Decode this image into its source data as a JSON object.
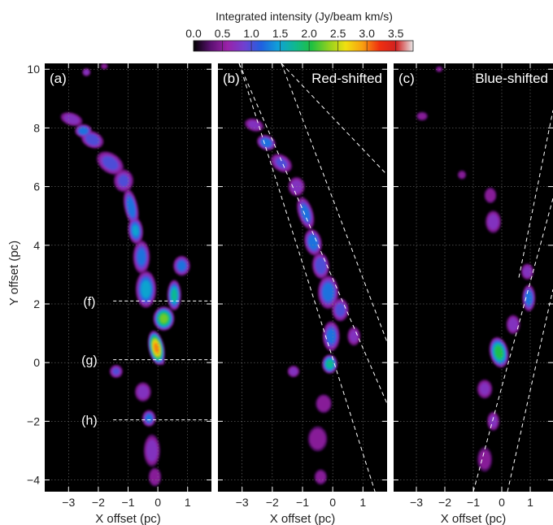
{
  "chart_data": {
    "type": "heatmap",
    "colorbar": {
      "title": "Integrated intensity (Jy/beam km/s)",
      "range": [
        0.0,
        3.8
      ],
      "ticks": [
        "0.0",
        "0.5",
        "1.0",
        "1.5",
        "2.0",
        "2.5",
        "3.0",
        "3.5"
      ],
      "colors": [
        "#000000",
        "#5a1070",
        "#9a22a8",
        "#7040d0",
        "#2060e0",
        "#10a0d8",
        "#10b890",
        "#20c040",
        "#90d020",
        "#f0e010",
        "#f8a010",
        "#f03010",
        "#d02020",
        "#e8e8e8"
      ]
    },
    "xlabel": "X offset (pc)",
    "ylabel": "Y offset (pc)",
    "ylim": [
      -4.4,
      10.2
    ],
    "yticks": [
      "−4",
      "−2",
      "0",
      "2",
      "4",
      "6",
      "8",
      "10"
    ],
    "panels": [
      {
        "label": "(a)",
        "title": "",
        "xlim": [
          -3.8,
          1.8
        ],
        "xticks": [
          "−3",
          "−2",
          "−1",
          "0",
          "1"
        ],
        "cuts": [
          {
            "label": "(f)",
            "y": 2.1
          },
          {
            "label": "(g)",
            "y": 0.1
          },
          {
            "label": "(h)",
            "y": -1.95
          }
        ],
        "guide_lines": [],
        "blobs": [
          [
            -2.4,
            9.9,
            0.13,
            0.13,
            0.0,
            0.8
          ],
          [
            -1.8,
            10.1,
            0.12,
            0.1,
            0.0,
            0.6
          ],
          [
            -2.9,
            8.3,
            0.35,
            0.2,
            -0.3,
            0.9
          ],
          [
            -2.5,
            7.9,
            0.25,
            0.2,
            0.0,
            1.4
          ],
          [
            -2.2,
            7.6,
            0.35,
            0.25,
            -0.4,
            1.2
          ],
          [
            -1.6,
            6.8,
            0.45,
            0.3,
            -0.6,
            1.1
          ],
          [
            -1.15,
            6.2,
            0.3,
            0.35,
            0.0,
            1.0
          ],
          [
            -0.9,
            5.3,
            0.2,
            0.55,
            0.2,
            1.4
          ],
          [
            -0.75,
            4.5,
            0.22,
            0.4,
            0.1,
            1.5
          ],
          [
            -0.55,
            3.6,
            0.25,
            0.5,
            0.0,
            1.3
          ],
          [
            -0.4,
            2.5,
            0.3,
            0.55,
            0.0,
            1.6
          ],
          [
            0.8,
            3.3,
            0.25,
            0.3,
            0.0,
            1.3
          ],
          [
            0.55,
            2.3,
            0.2,
            0.45,
            0.0,
            1.8
          ],
          [
            0.2,
            1.5,
            0.3,
            0.35,
            0.0,
            2.3
          ],
          [
            -0.05,
            0.5,
            0.22,
            0.5,
            0.2,
            3.0
          ],
          [
            0.05,
            0.3,
            0.12,
            0.35,
            0.3,
            1.6
          ],
          [
            -1.4,
            -0.3,
            0.2,
            0.2,
            0.0,
            1.0
          ],
          [
            -0.5,
            -1.0,
            0.25,
            0.3,
            0.0,
            0.9
          ],
          [
            -0.3,
            -1.9,
            0.2,
            0.25,
            0.0,
            1.3
          ],
          [
            -0.2,
            -3.0,
            0.25,
            0.5,
            0.0,
            0.9
          ],
          [
            -0.1,
            -3.9,
            0.2,
            0.3,
            0.0,
            0.7
          ]
        ]
      },
      {
        "label": "(b)",
        "title": "Red-shifted",
        "xlim": [
          -3.8,
          1.8
        ],
        "xticks": [
          "−3",
          "−2",
          "−1",
          "0",
          "1"
        ],
        "cuts": [],
        "guide_lines": [
          [
            [
              -3.1,
              10.2
            ],
            [
              1.8,
              -1.4
            ]
          ],
          [
            [
              -1.7,
              10.2
            ],
            [
              1.8,
              0.7
            ]
          ],
          [
            [
              -3.1,
              10.2
            ],
            [
              1.4,
              -4.4
            ]
          ],
          [
            [
              -1.7,
              10.2
            ],
            [
              1.8,
              6.4
            ]
          ]
        ],
        "blobs": [
          [
            -2.6,
            8.1,
            0.3,
            0.2,
            -0.3,
            0.8
          ],
          [
            -2.2,
            7.5,
            0.28,
            0.22,
            -0.4,
            1.4
          ],
          [
            -1.7,
            6.8,
            0.35,
            0.25,
            -0.6,
            1.0
          ],
          [
            -1.2,
            6.0,
            0.25,
            0.3,
            0.0,
            0.9
          ],
          [
            -0.9,
            5.1,
            0.22,
            0.5,
            0.3,
            1.3
          ],
          [
            -0.65,
            4.1,
            0.25,
            0.4,
            0.2,
            1.4
          ],
          [
            -0.4,
            3.3,
            0.25,
            0.4,
            0.1,
            1.2
          ],
          [
            -0.15,
            2.4,
            0.3,
            0.5,
            0.0,
            1.4
          ],
          [
            0.25,
            1.8,
            0.25,
            0.35,
            0.0,
            1.1
          ],
          [
            -0.05,
            0.9,
            0.25,
            0.45,
            0.0,
            1.3
          ],
          [
            -0.1,
            -0.05,
            0.22,
            0.28,
            0.0,
            1.9
          ],
          [
            -1.3,
            -0.3,
            0.18,
            0.18,
            0.0,
            0.9
          ],
          [
            0.7,
            0.9,
            0.2,
            0.3,
            0.0,
            0.8
          ],
          [
            -0.3,
            -1.4,
            0.25,
            0.3,
            0.0,
            0.7
          ],
          [
            -0.5,
            -2.6,
            0.3,
            0.4,
            0.0,
            0.7
          ],
          [
            -0.4,
            -3.9,
            0.2,
            0.25,
            0.0,
            0.6
          ]
        ]
      },
      {
        "label": "(c)",
        "title": "Blue-shifted",
        "xlim": [
          -3.8,
          1.8
        ],
        "xticks": [
          "−3",
          "−2",
          "−1",
          "0",
          "1"
        ],
        "cuts": [],
        "guide_lines": [
          [
            [
              -1.0,
              -4.4
            ],
            [
              1.8,
              5.6
            ]
          ],
          [
            [
              0.2,
              -4.4
            ],
            [
              1.8,
              2.5
            ]
          ],
          [
            [
              0.6,
              2.9
            ],
            [
              1.8,
              8.6
            ]
          ]
        ],
        "blobs": [
          [
            -2.2,
            10.0,
            0.12,
            0.1,
            0.0,
            0.5
          ],
          [
            -2.8,
            8.4,
            0.2,
            0.15,
            0.0,
            0.5
          ],
          [
            -1.4,
            6.4,
            0.15,
            0.15,
            0.0,
            0.5
          ],
          [
            -0.4,
            5.7,
            0.2,
            0.25,
            0.0,
            0.7
          ],
          [
            -0.3,
            4.8,
            0.25,
            0.35,
            0.0,
            0.9
          ],
          [
            0.9,
            3.1,
            0.2,
            0.25,
            0.0,
            0.9
          ],
          [
            0.95,
            2.2,
            0.2,
            0.4,
            0.0,
            1.4
          ],
          [
            0.4,
            1.3,
            0.22,
            0.3,
            0.0,
            0.9
          ],
          [
            -0.1,
            0.35,
            0.28,
            0.45,
            0.2,
            2.1
          ],
          [
            -0.05,
            0.2,
            0.12,
            0.18,
            0.0,
            1.4
          ],
          [
            -0.6,
            -0.9,
            0.25,
            0.3,
            0.0,
            0.8
          ],
          [
            -0.3,
            -2.0,
            0.2,
            0.3,
            0.0,
            0.8
          ],
          [
            -0.6,
            -3.3,
            0.25,
            0.4,
            0.0,
            0.6
          ]
        ]
      }
    ]
  }
}
